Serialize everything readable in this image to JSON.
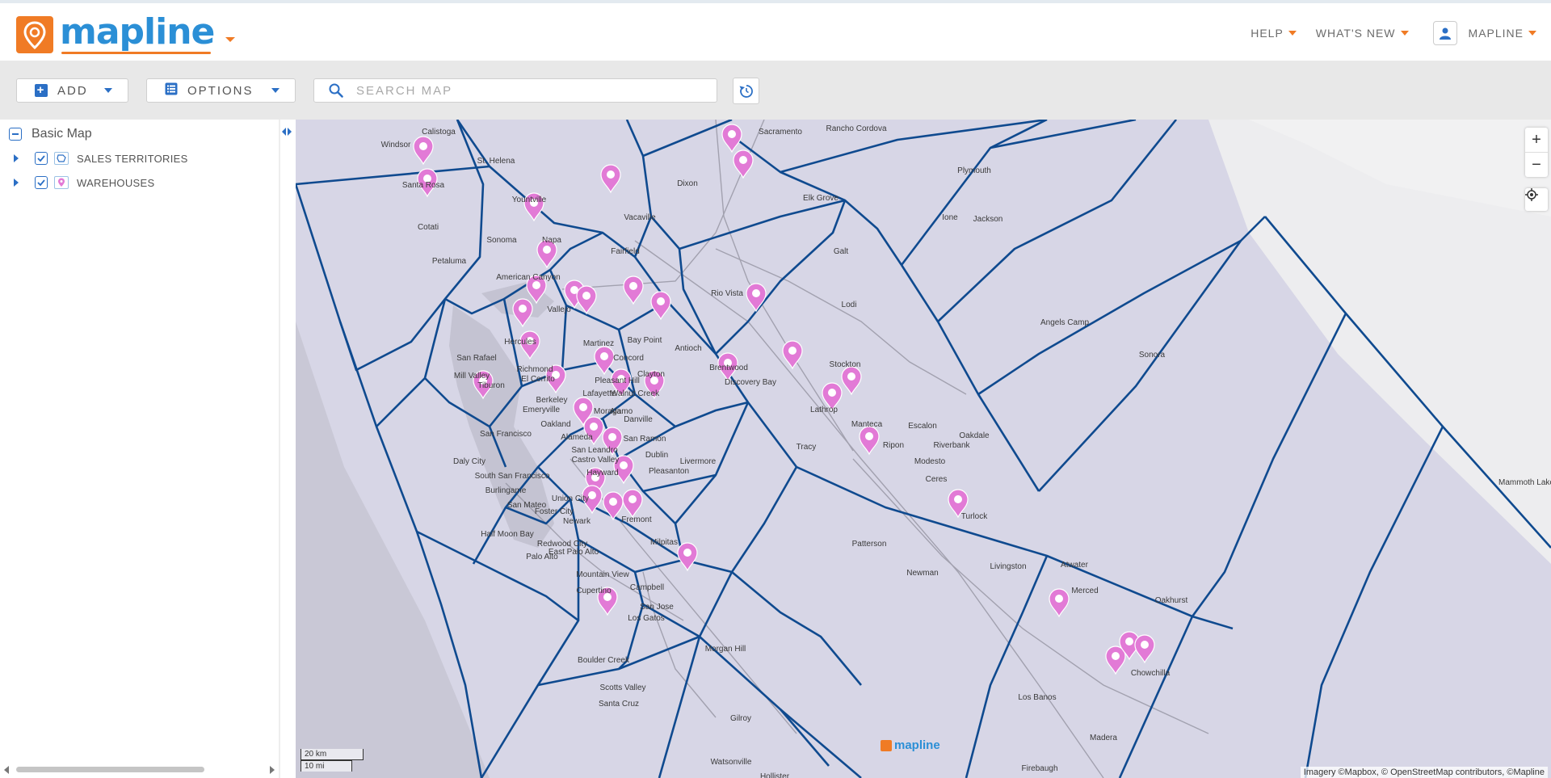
{
  "header": {
    "logo_text": "mapline",
    "nav": [
      {
        "label": "HELP"
      },
      {
        "label": "WHAT'S NEW"
      },
      {
        "label": "MAPLINE"
      }
    ]
  },
  "toolbar": {
    "add_label": "ADD",
    "options_label": "OPTIONS",
    "search_placeholder": "SEARCH MAP"
  },
  "sidebar": {
    "title": "Basic Map",
    "layers": [
      {
        "label": "SALES TERRITORIES",
        "checked": true,
        "icon": "territory-icon"
      },
      {
        "label": "WAREHOUSES",
        "checked": true,
        "icon": "pin-icon"
      }
    ]
  },
  "map": {
    "colors": {
      "territory_line": "#0f4a8f",
      "pin": "#e27ad6",
      "accent": "#f07b25",
      "brand": "#2b8fd6"
    },
    "cities": [
      {
        "name": "Calistoga"
      },
      {
        "name": "Windsor"
      },
      {
        "name": "St. Helena"
      },
      {
        "name": "Santa Rosa"
      },
      {
        "name": "Yountville"
      },
      {
        "name": "Cotati"
      },
      {
        "name": "Sonoma"
      },
      {
        "name": "Napa"
      },
      {
        "name": "Petaluma"
      },
      {
        "name": "Vacaville"
      },
      {
        "name": "Dixon"
      },
      {
        "name": "Fairfield"
      },
      {
        "name": "Sacramento"
      },
      {
        "name": "Rancho Cordova"
      },
      {
        "name": "Elk Grove"
      },
      {
        "name": "Plymouth"
      },
      {
        "name": "Ione"
      },
      {
        "name": "Jackson"
      },
      {
        "name": "Galt"
      },
      {
        "name": "Rio Vista"
      },
      {
        "name": "Lodi"
      },
      {
        "name": "American Canyon"
      },
      {
        "name": "Vallejo"
      },
      {
        "name": "Hercules"
      },
      {
        "name": "Martinez"
      },
      {
        "name": "Bay Point"
      },
      {
        "name": "Concord"
      },
      {
        "name": "Antioch"
      },
      {
        "name": "Brentwood"
      },
      {
        "name": "San Rafael"
      },
      {
        "name": "Richmond"
      },
      {
        "name": "Mill Valley"
      },
      {
        "name": "Tiburon"
      },
      {
        "name": "El Cerrito"
      },
      {
        "name": "Pleasant Hill"
      },
      {
        "name": "Walnut Creek"
      },
      {
        "name": "Clayton"
      },
      {
        "name": "Lafayette"
      },
      {
        "name": "Berkeley"
      },
      {
        "name": "Emeryville"
      },
      {
        "name": "Moraga"
      },
      {
        "name": "Oakland"
      },
      {
        "name": "Alamo"
      },
      {
        "name": "Danville"
      },
      {
        "name": "Discovery Bay"
      },
      {
        "name": "Stockton"
      },
      {
        "name": "Lathrop"
      },
      {
        "name": "Manteca"
      },
      {
        "name": "Tracy"
      },
      {
        "name": "Ripon"
      },
      {
        "name": "Escalon"
      },
      {
        "name": "Riverbank"
      },
      {
        "name": "Oakdale"
      },
      {
        "name": "Angels Camp"
      },
      {
        "name": "Sonora"
      },
      {
        "name": "San Francisco"
      },
      {
        "name": "Alameda"
      },
      {
        "name": "San Leandro"
      },
      {
        "name": "San Ramon"
      },
      {
        "name": "Dublin"
      },
      {
        "name": "Livermore"
      },
      {
        "name": "Pleasanton"
      },
      {
        "name": "Castro Valley"
      },
      {
        "name": "Hayward"
      },
      {
        "name": "Daly City"
      },
      {
        "name": "South San Francisco"
      },
      {
        "name": "Burlingame"
      },
      {
        "name": "San Mateo"
      },
      {
        "name": "Foster City"
      },
      {
        "name": "Union City"
      },
      {
        "name": "Newark"
      },
      {
        "name": "Fremont"
      },
      {
        "name": "Half Moon Bay"
      },
      {
        "name": "Redwood City"
      },
      {
        "name": "Palo Alto"
      },
      {
        "name": "East Palo Alto"
      },
      {
        "name": "Milpitas"
      },
      {
        "name": "Mountain View"
      },
      {
        "name": "Cupertino"
      },
      {
        "name": "Campbell"
      },
      {
        "name": "San Jose"
      },
      {
        "name": "Los Gatos"
      },
      {
        "name": "Modesto"
      },
      {
        "name": "Ceres"
      },
      {
        "name": "Turlock"
      },
      {
        "name": "Patterson"
      },
      {
        "name": "Newman"
      },
      {
        "name": "Livingston"
      },
      {
        "name": "Atwater"
      },
      {
        "name": "Merced"
      },
      {
        "name": "Oakhurst"
      },
      {
        "name": "Mammoth Lakes"
      },
      {
        "name": "Chowchilla"
      },
      {
        "name": "Morgan Hill"
      },
      {
        "name": "Boulder Creek"
      },
      {
        "name": "Scotts Valley"
      },
      {
        "name": "Santa Cruz"
      },
      {
        "name": "Gilroy"
      },
      {
        "name": "Los Banos"
      },
      {
        "name": "Madera"
      },
      {
        "name": "Watsonville"
      },
      {
        "name": "Hollister"
      },
      {
        "name": "Firebaugh"
      }
    ],
    "pins_count": 40,
    "scale_km": "20 km",
    "scale_mi": "10 mi",
    "watermark": "mapline",
    "attribution": "Imagery ©Mapbox, © OpenStreetMap contributors, ©Mapline"
  }
}
